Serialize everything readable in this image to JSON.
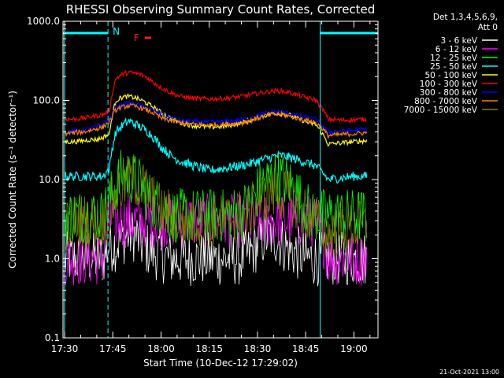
{
  "chart_data": {
    "type": "line",
    "title": "RHESSI Observing Summary Count Rates, Corrected",
    "xlabel": "Start Time (10-Dec-12 17:29:02)",
    "ylabel": "Corrected Count Rate (s⁻¹ detector⁻¹)",
    "y_scale": "log",
    "ylim": [
      0.1,
      1000.0
    ],
    "xlim_minutes": [
      -0.5,
      97.5
    ],
    "x_tick_labels": [
      "17:30",
      "17:45",
      "18:00",
      "18:15",
      "18:30",
      "18:45",
      "19:00"
    ],
    "x_tick_minutes": [
      0,
      15,
      30,
      45,
      60,
      75,
      90
    ],
    "y_tick_labels": [
      "0.1",
      "1.0",
      "10.0",
      "100.0",
      "1000.0"
    ],
    "y_tick_values": [
      0.1,
      1,
      10,
      100,
      1000
    ],
    "detectors": "Det 1,3,4,5,6,9,",
    "attenuator": "Att 0",
    "annotations": {
      "night_label": "N",
      "flare_label": "F",
      "night_intervals_minutes": [
        [
          -0.5,
          13.5
        ],
        [
          79.5,
          97.5
        ]
      ],
      "flare_interval_minutes": [
        21.5,
        23.5
      ]
    },
    "footer_date": "21-Oct-2021 13:00",
    "x_time_minutes": [
      0,
      3,
      6,
      8,
      10,
      12,
      14,
      16,
      18,
      20,
      22,
      24,
      26,
      28,
      30,
      33,
      36,
      40,
      45,
      50,
      55,
      58,
      60,
      62,
      64,
      66,
      68,
      70,
      72,
      74,
      76,
      78,
      82,
      86,
      90,
      94
    ],
    "series": [
      {
        "name": "3 - 6 keV",
        "color": "#ffffff",
        "values": [
          1,
          1,
          1,
          1,
          1,
          1,
          1.5,
          1.5,
          1.8,
          2,
          2,
          1.5,
          1.3,
          1.2,
          1.1,
          1,
          1,
          1,
          1,
          1,
          1,
          1.2,
          1.5,
          1.8,
          2,
          1.8,
          1.5,
          1.3,
          1.2,
          1.1,
          1,
          1,
          1,
          1,
          1,
          1
        ]
      },
      {
        "name": "6 - 12 keV",
        "color": "#ff00ff",
        "values": [
          1,
          1,
          1,
          1,
          1,
          1,
          3,
          3,
          3,
          3,
          3,
          3,
          3,
          3,
          3,
          3,
          3,
          3,
          3,
          3,
          3,
          3,
          3,
          3,
          3,
          3,
          3,
          3,
          3,
          3,
          3,
          3,
          1,
          1,
          1,
          1
        ]
      },
      {
        "name": "12 - 25 keV",
        "color": "#00ff00",
        "values": [
          3.5,
          3.5,
          3.5,
          3.5,
          3.5,
          3.5,
          5.5,
          8,
          12,
          11,
          10,
          8,
          6,
          5,
          4.5,
          3.5,
          3.5,
          3.5,
          3.5,
          3.5,
          4,
          5,
          7,
          9,
          10,
          11,
          10,
          9,
          7,
          5,
          4,
          3.5,
          3.5,
          3.5,
          3.5,
          3.5
        ]
      },
      {
        "name": "25 - 50 keV",
        "color": "#00ffff",
        "values": [
          11,
          11,
          11,
          11,
          11,
          11,
          14,
          40,
          48,
          55,
          50,
          45,
          40,
          33,
          26,
          20,
          17,
          15,
          13,
          14,
          15,
          16,
          17,
          18,
          19,
          20,
          20,
          19,
          18,
          17,
          16,
          15,
          10,
          10.5,
          11,
          11
        ]
      },
      {
        "name": "50 - 100 keV",
        "color": "#ffff00",
        "values": [
          30,
          30,
          31,
          32,
          32,
          34,
          38,
          100,
          110,
          112,
          108,
          100,
          90,
          80,
          70,
          60,
          52,
          48,
          46,
          47,
          52,
          56,
          60,
          64,
          67,
          69,
          68,
          65,
          60,
          56,
          52,
          50,
          28,
          29,
          30,
          31
        ]
      },
      {
        "name": "100 - 300 keV",
        "color": "#ff0000",
        "values": [
          58,
          58,
          60,
          62,
          64,
          66,
          75,
          190,
          215,
          225,
          220,
          210,
          190,
          165,
          145,
          125,
          112,
          106,
          104,
          106,
          112,
          118,
          122,
          126,
          130,
          132,
          130,
          125,
          118,
          112,
          106,
          102,
          58,
          56,
          57,
          58
        ]
      },
      {
        "name": "300 - 800 keV",
        "color": "#0000ff",
        "values": [
          40,
          41,
          42,
          44,
          47,
          50,
          58,
          82,
          88,
          92,
          90,
          86,
          80,
          74,
          66,
          60,
          56,
          54,
          53,
          54,
          57,
          60,
          64,
          68,
          71,
          72,
          71,
          68,
          65,
          62,
          60,
          58,
          40,
          41,
          42,
          43
        ]
      },
      {
        "name": "800 - 7000 keV",
        "color": "#ff8000",
        "values": [
          38,
          39,
          40,
          42,
          44,
          46,
          54,
          76,
          82,
          86,
          84,
          80,
          74,
          68,
          60,
          55,
          52,
          50,
          49,
          50,
          52,
          56,
          60,
          63,
          66,
          67,
          66,
          63,
          60,
          57,
          55,
          53,
          36,
          37,
          38,
          39
        ]
      },
      {
        "name": "7000 - 15000 keV",
        "color": "#808000",
        "values": [
          2.5,
          3,
          3,
          3,
          3,
          3,
          4,
          6.5,
          8.5,
          9.5,
          9.5,
          8.5,
          6.5,
          5,
          4,
          3.5,
          3,
          3,
          3,
          3,
          3.5,
          4,
          5,
          6,
          6.5,
          7,
          6.5,
          6,
          5,
          4,
          3.5,
          3,
          2,
          2.5,
          2.5,
          2.5
        ]
      }
    ]
  }
}
